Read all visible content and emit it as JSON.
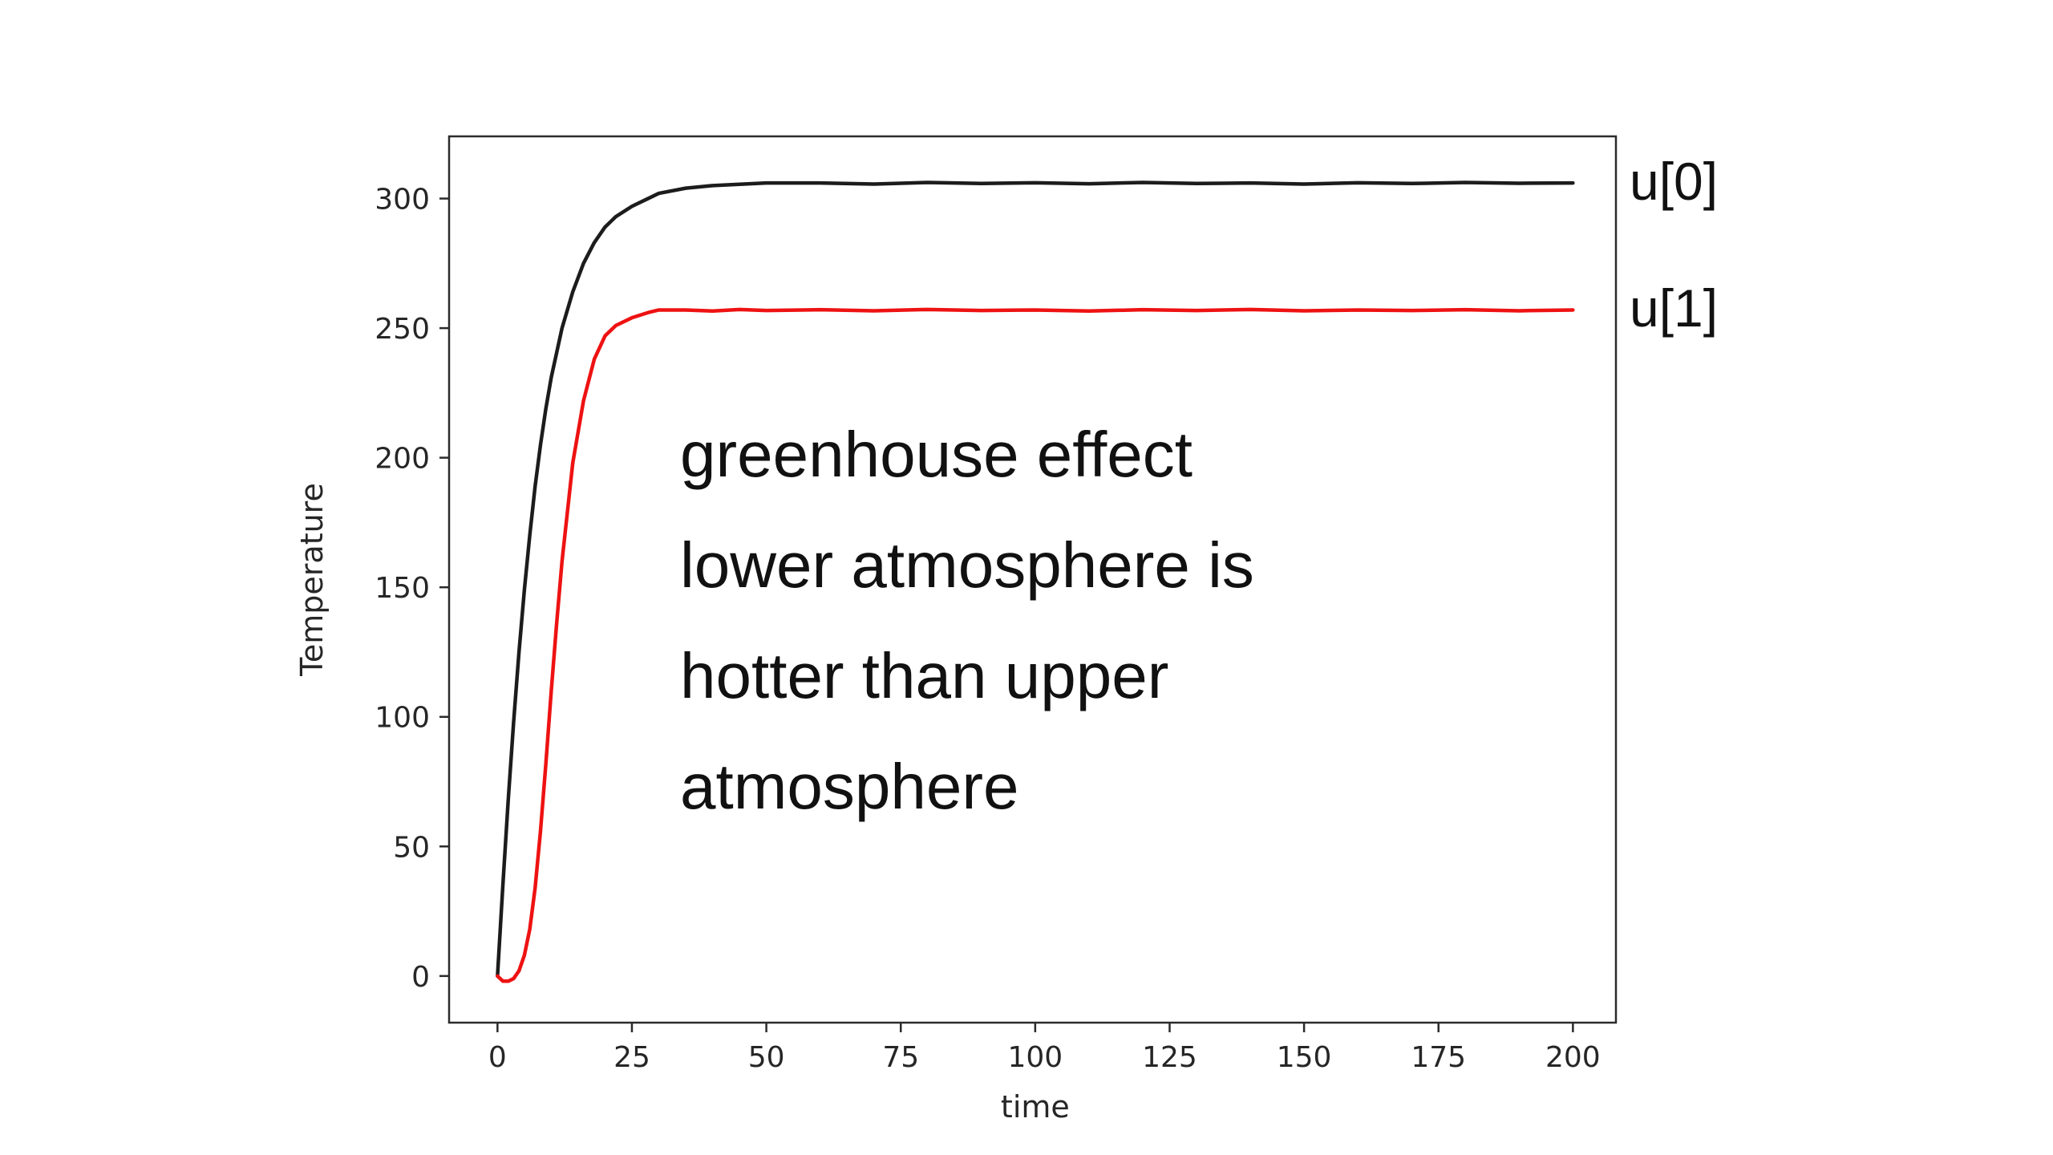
{
  "chart_data": {
    "type": "line",
    "title": "",
    "xlabel": "time",
    "ylabel": "Temperature",
    "xlim": [
      -9,
      208
    ],
    "ylim": [
      -18,
      324
    ],
    "xticks": [
      0,
      25,
      50,
      75,
      100,
      125,
      150,
      175,
      200
    ],
    "yticks": [
      0,
      50,
      100,
      150,
      200,
      250,
      300
    ],
    "grid": false,
    "legend_position": "right-outside",
    "spine_color": "#2b2b2b",
    "tick_label_color": "#262626",
    "series": [
      {
        "name": "u[0]",
        "color": "#1c1c1c",
        "x": [
          0,
          1,
          2,
          3,
          4,
          5,
          6,
          7,
          8,
          9,
          10,
          12,
          14,
          16,
          18,
          20,
          22,
          25,
          28,
          30,
          35,
          40,
          45,
          50,
          60,
          70,
          80,
          90,
          100,
          110,
          120,
          130,
          140,
          150,
          160,
          170,
          180,
          190,
          200
        ],
        "y": [
          0,
          35,
          68,
          98,
          125,
          149,
          170,
          189,
          205,
          219,
          231,
          250,
          264,
          275,
          283,
          289,
          293,
          297,
          300,
          302,
          304,
          305,
          305.5,
          306,
          306,
          305.6,
          306.2,
          305.8,
          306.1,
          305.7,
          306.2,
          305.8,
          306,
          305.6,
          306.1,
          305.8,
          306.2,
          305.9,
          306
        ]
      },
      {
        "name": "u[1]",
        "color": "#ee1212",
        "x": [
          0,
          1,
          2,
          3,
          4,
          5,
          6,
          7,
          8,
          9,
          10,
          11,
          12,
          14,
          16,
          18,
          20,
          22,
          25,
          28,
          30,
          35,
          40,
          45,
          50,
          60,
          70,
          80,
          90,
          100,
          110,
          120,
          130,
          140,
          150,
          160,
          170,
          180,
          190,
          200
        ],
        "y": [
          0,
          -2,
          -2,
          -1,
          2,
          8,
          18,
          34,
          56,
          82,
          110,
          136,
          160,
          198,
          222,
          238,
          247,
          251,
          254,
          256,
          257,
          257,
          256.6,
          257.2,
          256.8,
          257.1,
          256.7,
          257.2,
          256.8,
          257,
          256.6,
          257.1,
          256.8,
          257.2,
          256.7,
          257,
          256.8,
          257.1,
          256.7,
          257
        ]
      }
    ],
    "annotation": {
      "text": "greenhouse effect lower atmosphere is hotter than upper atmosphere",
      "lines": [
        "greenhouse effect",
        "lower atmosphere is",
        "hotter than upper",
        "atmosphere"
      ]
    }
  }
}
